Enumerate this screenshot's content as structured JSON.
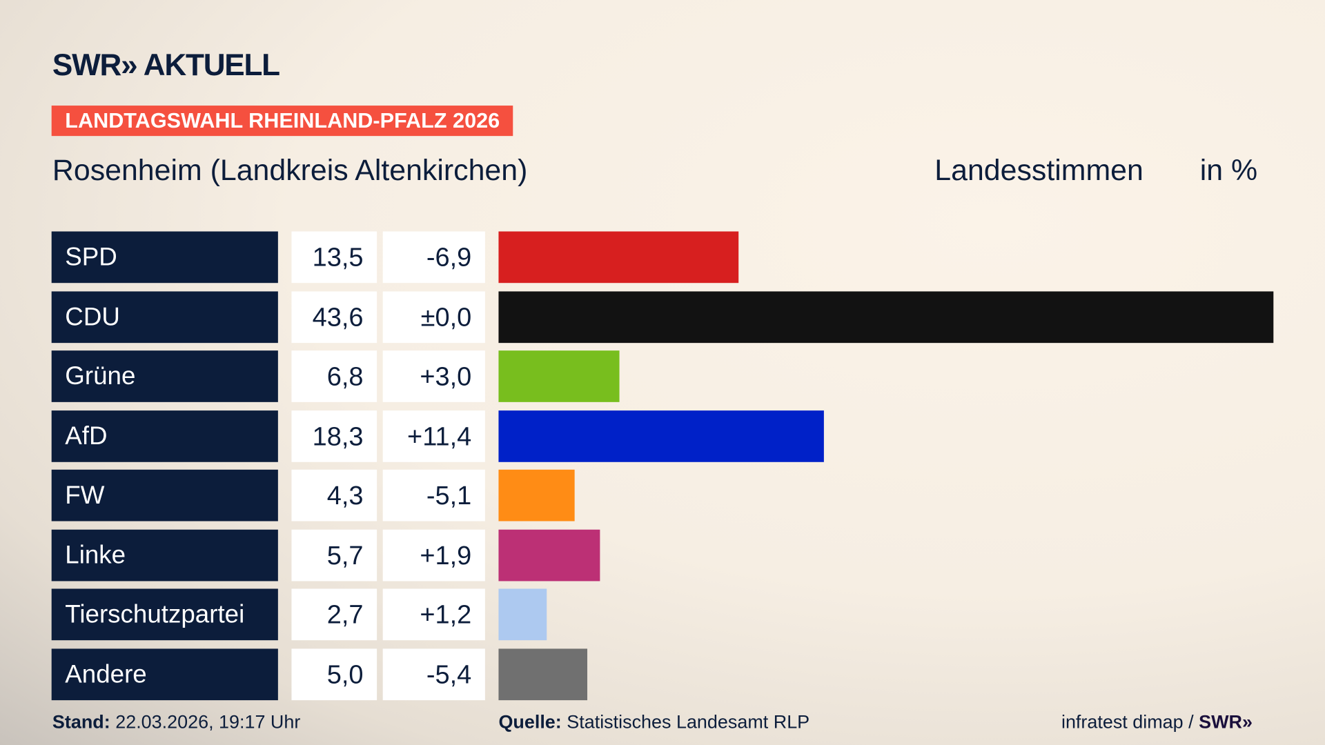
{
  "brand": {
    "logo": "SWR» AKTUELL"
  },
  "header": {
    "badge": "LANDTAGSWAHL RHEINLAND-PFALZ 2026",
    "subtitle": "Rosenheim (Landkreis Altenkirchen)",
    "measure": "Landesstimmen",
    "unit": "in %",
    "badge_color": "#f5503f"
  },
  "chart_data": {
    "type": "bar",
    "orientation": "horizontal",
    "xlim": [
      0,
      43.6
    ],
    "categories": [
      "SPD",
      "CDU",
      "Grüne",
      "AfD",
      "FW",
      "Linke",
      "Tierschutzpartei",
      "Andere"
    ],
    "values": [
      13.5,
      43.6,
      6.8,
      18.3,
      4.3,
      5.7,
      2.7,
      5.0
    ],
    "value_labels": [
      "13,5",
      "43,6",
      "6,8",
      "18,3",
      "4,3",
      "5,7",
      "2,7",
      "5,0"
    ],
    "diff_labels": [
      "-6,9",
      "±0,0",
      "+3,0",
      "+11,4",
      "-5,1",
      "+1,9",
      "+1,2",
      "-5,4"
    ],
    "colors": [
      "#d71f1f",
      "#121212",
      "#78be1e",
      "#0021c8",
      "#ff8c15",
      "#bc3075",
      "#adc9f0",
      "#707070"
    ]
  },
  "footer": {
    "stand_label": "Stand:",
    "stand_value": "22.03.2026, 19:17 Uhr",
    "source_label": "Quelle:",
    "source_value": "Statistisches Landesamt RLP",
    "credit": "infratest dimap / ",
    "credit_logo": "SWR»"
  }
}
